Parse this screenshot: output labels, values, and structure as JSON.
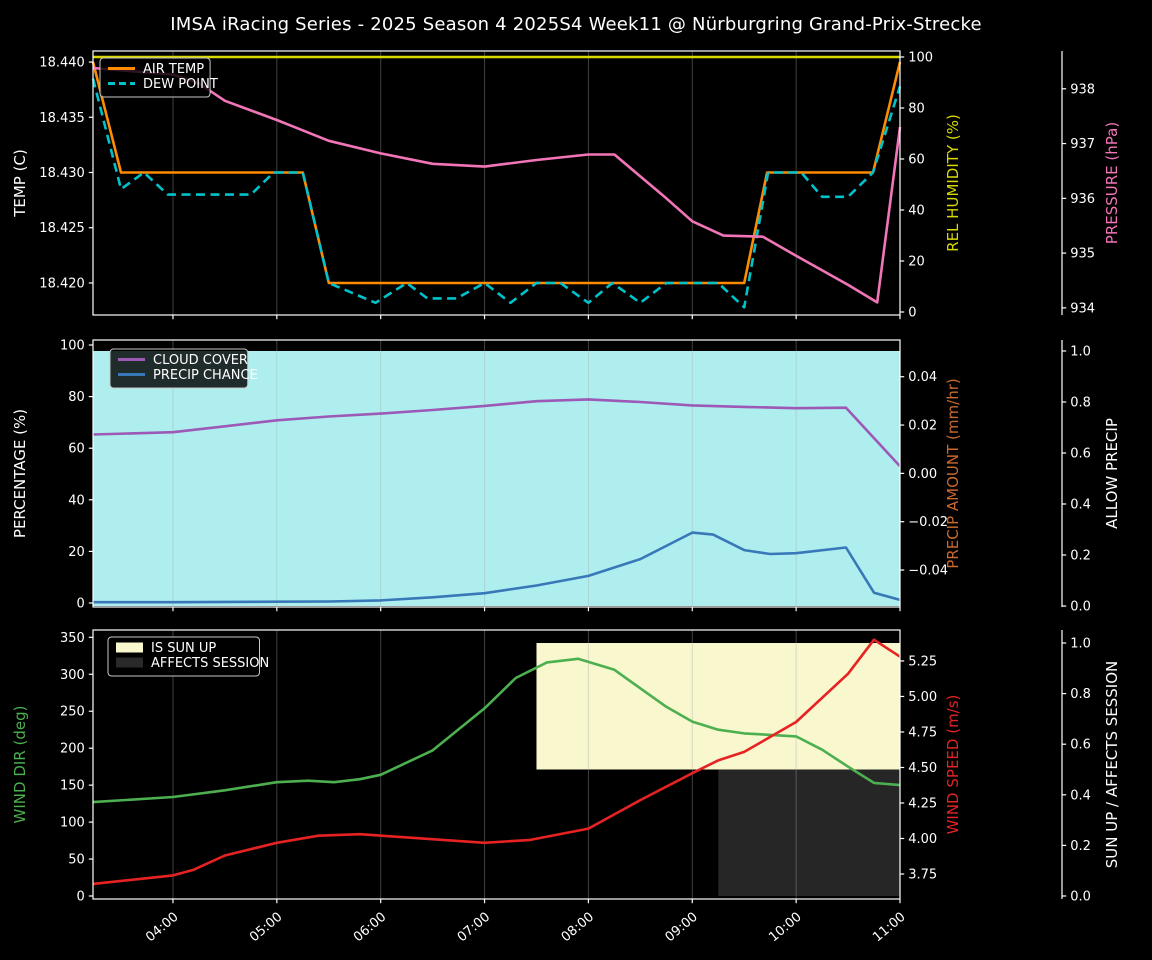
{
  "title": "IMSA iRacing Series - 2025 Season 4 2025S4 Week11 @ Nürburgring Grand-Prix-Strecke",
  "x_axis": {
    "label": "",
    "range": [
      3.23,
      11.0
    ],
    "ticks": [
      {
        "v": 4,
        "label": "04:00"
      },
      {
        "v": 5,
        "label": "05:00"
      },
      {
        "v": 6,
        "label": "06:00"
      },
      {
        "v": 7,
        "label": "07:00"
      },
      {
        "v": 8,
        "label": "08:00"
      },
      {
        "v": 9,
        "label": "09:00"
      },
      {
        "v": 10,
        "label": "10:00"
      },
      {
        "v": 11,
        "label": "11:00"
      }
    ]
  },
  "chart_data": [
    {
      "type": "line",
      "name": "temperature-humidity-pressure",
      "axes": {
        "left": {
          "label": "TEMP (C)",
          "color": "#ffffff",
          "range": [
            18.4171,
            18.441
          ],
          "ticks": [
            {
              "v": 18.44,
              "label": "18.440"
            },
            {
              "v": 18.435,
              "label": "18.435"
            },
            {
              "v": 18.43,
              "label": "18.430"
            },
            {
              "v": 18.425,
              "label": "18.425"
            },
            {
              "v": 18.42,
              "label": "18.420"
            }
          ]
        },
        "right1": {
          "label": "REL HUMIDITY (%)",
          "color": "#d9d900",
          "range": [
            -1.18,
            102.35
          ],
          "ticks": [
            {
              "v": 0,
              "label": "0"
            },
            {
              "v": 20,
              "label": "20"
            },
            {
              "v": 40,
              "label": "40"
            },
            {
              "v": 60,
              "label": "60"
            },
            {
              "v": 80,
              "label": "80"
            },
            {
              "v": 100,
              "label": "100"
            }
          ]
        },
        "right2": {
          "label": "PRESSURE (hPa)",
          "color": "#f275b8",
          "range": [
            933.87,
            938.69
          ],
          "ticks": [
            {
              "v": 934,
              "label": "934"
            },
            {
              "v": 935,
              "label": "935"
            },
            {
              "v": 936,
              "label": "936"
            },
            {
              "v": 937,
              "label": "937"
            },
            {
              "v": 938,
              "label": "938"
            }
          ]
        }
      },
      "legend": [
        {
          "label": "AIR TEMP",
          "color": "#ff8c00",
          "style": "line"
        },
        {
          "label": "DEW POINT",
          "color": "#00c2cb",
          "style": "dashed"
        }
      ],
      "bands": [],
      "series": [
        {
          "name": "REL HUMIDITY",
          "axis": "right1",
          "color": "#d9d900",
          "style": "solid",
          "points": [
            [
              3.23,
              100
            ],
            [
              11.0,
              100
            ]
          ]
        },
        {
          "name": "AIR TEMP",
          "axis": "left",
          "color": "#ff8c00",
          "style": "solid",
          "points": [
            [
              3.23,
              18.44
            ],
            [
              3.5,
              18.43
            ],
            [
              5.25,
              18.43
            ],
            [
              5.5,
              18.42
            ],
            [
              9.5,
              18.42
            ],
            [
              9.72,
              18.43
            ],
            [
              10.74,
              18.43
            ],
            [
              11.0,
              18.44
            ]
          ]
        },
        {
          "name": "DEW POINT",
          "axis": "left",
          "color": "#00c2cb",
          "style": "dashed",
          "points": [
            [
              3.23,
              18.4385
            ],
            [
              3.5,
              18.4285
            ],
            [
              3.72,
              18.43
            ],
            [
              3.95,
              18.428
            ],
            [
              4.75,
              18.428
            ],
            [
              4.97,
              18.43
            ],
            [
              5.25,
              18.43
            ],
            [
              5.5,
              18.42
            ],
            [
              5.95,
              18.4182
            ],
            [
              6.25,
              18.42
            ],
            [
              6.45,
              18.4186
            ],
            [
              6.73,
              18.4186
            ],
            [
              7.0,
              18.42
            ],
            [
              7.25,
              18.4182
            ],
            [
              7.5,
              18.42
            ],
            [
              7.73,
              18.42
            ],
            [
              8.0,
              18.4182
            ],
            [
              8.23,
              18.42
            ],
            [
              8.5,
              18.4182
            ],
            [
              8.75,
              18.42
            ],
            [
              9.25,
              18.42
            ],
            [
              9.5,
              18.4178
            ],
            [
              9.73,
              18.43
            ],
            [
              10.05,
              18.43
            ],
            [
              10.25,
              18.4278
            ],
            [
              10.5,
              18.4278
            ],
            [
              10.74,
              18.43
            ],
            [
              11.0,
              18.4378
            ]
          ]
        },
        {
          "name": "PRESSURE",
          "axis": "right2",
          "color": "#f275b8",
          "style": "solid",
          "points": [
            [
              3.23,
              938.38
            ],
            [
              4.0,
              938.26
            ],
            [
              4.25,
              938.1
            ],
            [
              4.5,
              937.78
            ],
            [
              5.0,
              937.43
            ],
            [
              5.5,
              937.05
            ],
            [
              6.0,
              936.82
            ],
            [
              6.5,
              936.63
            ],
            [
              7.0,
              936.58
            ],
            [
              7.5,
              936.7
            ],
            [
              8.0,
              936.8
            ],
            [
              8.25,
              936.8
            ],
            [
              8.5,
              936.4
            ],
            [
              8.75,
              936.0
            ],
            [
              9.0,
              935.58
            ],
            [
              9.3,
              935.32
            ],
            [
              9.68,
              935.3
            ],
            [
              10.0,
              934.95
            ],
            [
              10.5,
              934.42
            ],
            [
              10.78,
              934.1
            ],
            [
              11.0,
              937.3
            ]
          ]
        }
      ]
    },
    {
      "type": "line",
      "name": "cloud-precip",
      "axes": {
        "left": {
          "label": "PERCENTAGE (%)",
          "color": "#ffffff",
          "range": [
            -1.55,
            101.94
          ],
          "ticks": [
            {
              "v": 0,
              "label": "0"
            },
            {
              "v": 20,
              "label": "20"
            },
            {
              "v": 40,
              "label": "40"
            },
            {
              "v": 60,
              "label": "60"
            },
            {
              "v": 80,
              "label": "80"
            },
            {
              "v": 100,
              "label": "100"
            }
          ]
        },
        "right1": {
          "label": "PRECIP AMOUNT (mm/hr)",
          "color": "#c8692e",
          "range": [
            -0.0553,
            0.0552
          ],
          "ticks": [
            {
              "v": 0.04,
              "label": "0.04"
            },
            {
              "v": 0.02,
              "label": "0.02"
            },
            {
              "v": 0.0,
              "label": "0.00"
            },
            {
              "v": -0.02,
              "label": "−0.02"
            },
            {
              "v": -0.04,
              "label": "−0.04"
            }
          ]
        },
        "right2": {
          "label": "ALLOW PRECIP",
          "color": "#ffffff",
          "range": [
            -0.0039,
            1.0431
          ],
          "ticks": [
            {
              "v": 0.0,
              "label": "0.0"
            },
            {
              "v": 0.2,
              "label": "0.2"
            },
            {
              "v": 0.4,
              "label": "0.4"
            },
            {
              "v": 0.6,
              "label": "0.6"
            },
            {
              "v": 0.8,
              "label": "0.8"
            },
            {
              "v": 1.0,
              "label": "1.0"
            }
          ]
        }
      },
      "legend": [
        {
          "label": "CLOUD COVER",
          "color": "#9c59b6",
          "style": "line"
        },
        {
          "label": "PRECIP CHANCE",
          "color": "#3878b8",
          "style": "line"
        }
      ],
      "bands": [
        {
          "name": "ALLOW PRECIP",
          "axis": "right2",
          "x": [
            3.23,
            11.0
          ],
          "y": [
            0.0,
            1.0
          ],
          "color": "#afeeee",
          "opacity": 1
        }
      ],
      "series": [
        {
          "name": "CLOUD COVER",
          "axis": "left",
          "color": "#9c59b6",
          "style": "solid",
          "points": [
            [
              3.23,
              65.3
            ],
            [
              4.0,
              66.2
            ],
            [
              4.5,
              68.5
            ],
            [
              5.0,
              70.8
            ],
            [
              5.5,
              72.3
            ],
            [
              6.0,
              73.4
            ],
            [
              6.5,
              74.8
            ],
            [
              7.0,
              76.4
            ],
            [
              7.5,
              78.2
            ],
            [
              8.0,
              78.9
            ],
            [
              8.5,
              77.9
            ],
            [
              9.0,
              76.6
            ],
            [
              9.5,
              76.0
            ],
            [
              10.0,
              75.5
            ],
            [
              10.48,
              75.7
            ],
            [
              11.0,
              53.0
            ]
          ]
        },
        {
          "name": "PRECIP CHANCE",
          "axis": "left",
          "color": "#3878b8",
          "style": "solid",
          "points": [
            [
              3.23,
              0.3
            ],
            [
              4.0,
              0.3
            ],
            [
              5.0,
              0.5
            ],
            [
              5.5,
              0.6
            ],
            [
              6.0,
              1.0
            ],
            [
              6.5,
              2.2
            ],
            [
              7.0,
              3.8
            ],
            [
              7.5,
              6.8
            ],
            [
              8.0,
              10.5
            ],
            [
              8.5,
              17.0
            ],
            [
              9.0,
              27.3
            ],
            [
              9.2,
              26.5
            ],
            [
              9.5,
              20.5
            ],
            [
              9.75,
              19.0
            ],
            [
              10.0,
              19.3
            ],
            [
              10.48,
              21.5
            ],
            [
              10.75,
              4.0
            ],
            [
              11.0,
              1.2
            ]
          ]
        }
      ]
    },
    {
      "type": "line",
      "name": "wind-sun",
      "axes": {
        "left": {
          "label": "WIND DIR (deg)",
          "color": "#4caf50",
          "range": [
            -4.06,
            359.9
          ],
          "ticks": [
            {
              "v": 0,
              "label": "0"
            },
            {
              "v": 50,
              "label": "50"
            },
            {
              "v": 100,
              "label": "100"
            },
            {
              "v": 150,
              "label": "150"
            },
            {
              "v": 200,
              "label": "200"
            },
            {
              "v": 250,
              "label": "250"
            },
            {
              "v": 300,
              "label": "300"
            },
            {
              "v": 350,
              "label": "350"
            }
          ]
        },
        "right1": {
          "label": "WIND SPEED (m/s)",
          "color": "#e62222",
          "range": [
            3.574,
            5.468
          ],
          "ticks": [
            {
              "v": 3.75,
              "label": "3.75"
            },
            {
              "v": 4.0,
              "label": "4.00"
            },
            {
              "v": 4.25,
              "label": "4.25"
            },
            {
              "v": 4.5,
              "label": "4.50"
            },
            {
              "v": 4.75,
              "label": "4.75"
            },
            {
              "v": 5.0,
              "label": "5.00"
            },
            {
              "v": 5.25,
              "label": "5.25"
            }
          ]
        },
        "right2": {
          "label": "SUN UP / AFFECTS SESSION",
          "color": "#ffffff",
          "range": [
            -0.0119,
            1.0514
          ],
          "ticks": [
            {
              "v": 0.0,
              "label": "0.0"
            },
            {
              "v": 0.2,
              "label": "0.2"
            },
            {
              "v": 0.4,
              "label": "0.4"
            },
            {
              "v": 0.6,
              "label": "0.6"
            },
            {
              "v": 0.8,
              "label": "0.8"
            },
            {
              "v": 1.0,
              "label": "1.0"
            }
          ]
        }
      },
      "legend": [
        {
          "label": "IS SUN UP",
          "color": "#f9f7cd",
          "style": "patch"
        },
        {
          "label": "AFFECTS SESSION",
          "color": "#2a2a2a",
          "style": "patch"
        }
      ],
      "bands": [
        {
          "name": "IS SUN UP",
          "axis": "right2",
          "x": [
            7.5,
            11.0
          ],
          "y": [
            0.5,
            1.0
          ],
          "color": "#f9f7cd",
          "opacity": 1
        },
        {
          "name": "AFFECTS SESSION",
          "axis": "right2",
          "x": [
            9.25,
            11.0
          ],
          "y": [
            0.0,
            0.5
          ],
          "color": "#262626",
          "opacity": 1
        }
      ],
      "series": [
        {
          "name": "WIND DIR",
          "axis": "left",
          "color": "#4caf50",
          "style": "solid",
          "points": [
            [
              3.23,
              127
            ],
            [
              4.0,
              134
            ],
            [
              4.5,
              143
            ],
            [
              5.0,
              154
            ],
            [
              5.3,
              156
            ],
            [
              5.55,
              154
            ],
            [
              5.8,
              158
            ],
            [
              6.0,
              164
            ],
            [
              6.5,
              197
            ],
            [
              7.0,
              254
            ],
            [
              7.3,
              295
            ],
            [
              7.6,
              316
            ],
            [
              7.9,
              321
            ],
            [
              8.25,
              306
            ],
            [
              8.5,
              281
            ],
            [
              8.75,
              256
            ],
            [
              9.0,
              236
            ],
            [
              9.25,
              225
            ],
            [
              9.5,
              220
            ],
            [
              10.0,
              216
            ],
            [
              10.25,
              198
            ],
            [
              10.5,
              175
            ],
            [
              10.75,
              153
            ],
            [
              11.0,
              150
            ]
          ]
        },
        {
          "name": "WIND SPEED",
          "axis": "right1",
          "color": "#e62222",
          "style": "solid",
          "points": [
            [
              3.23,
              3.68
            ],
            [
              4.0,
              3.74
            ],
            [
              4.2,
              3.78
            ],
            [
              4.5,
              3.88
            ],
            [
              5.0,
              3.97
            ],
            [
              5.4,
              4.02
            ],
            [
              5.8,
              4.03
            ],
            [
              6.2,
              4.01
            ],
            [
              6.6,
              3.99
            ],
            [
              7.0,
              3.97
            ],
            [
              7.44,
              3.99
            ],
            [
              8.0,
              4.07
            ],
            [
              8.5,
              4.27
            ],
            [
              9.0,
              4.46
            ],
            [
              9.25,
              4.55
            ],
            [
              9.5,
              4.61
            ],
            [
              10.0,
              4.82
            ],
            [
              10.5,
              5.16
            ],
            [
              10.75,
              5.4
            ],
            [
              11.0,
              5.28
            ]
          ]
        }
      ]
    }
  ]
}
